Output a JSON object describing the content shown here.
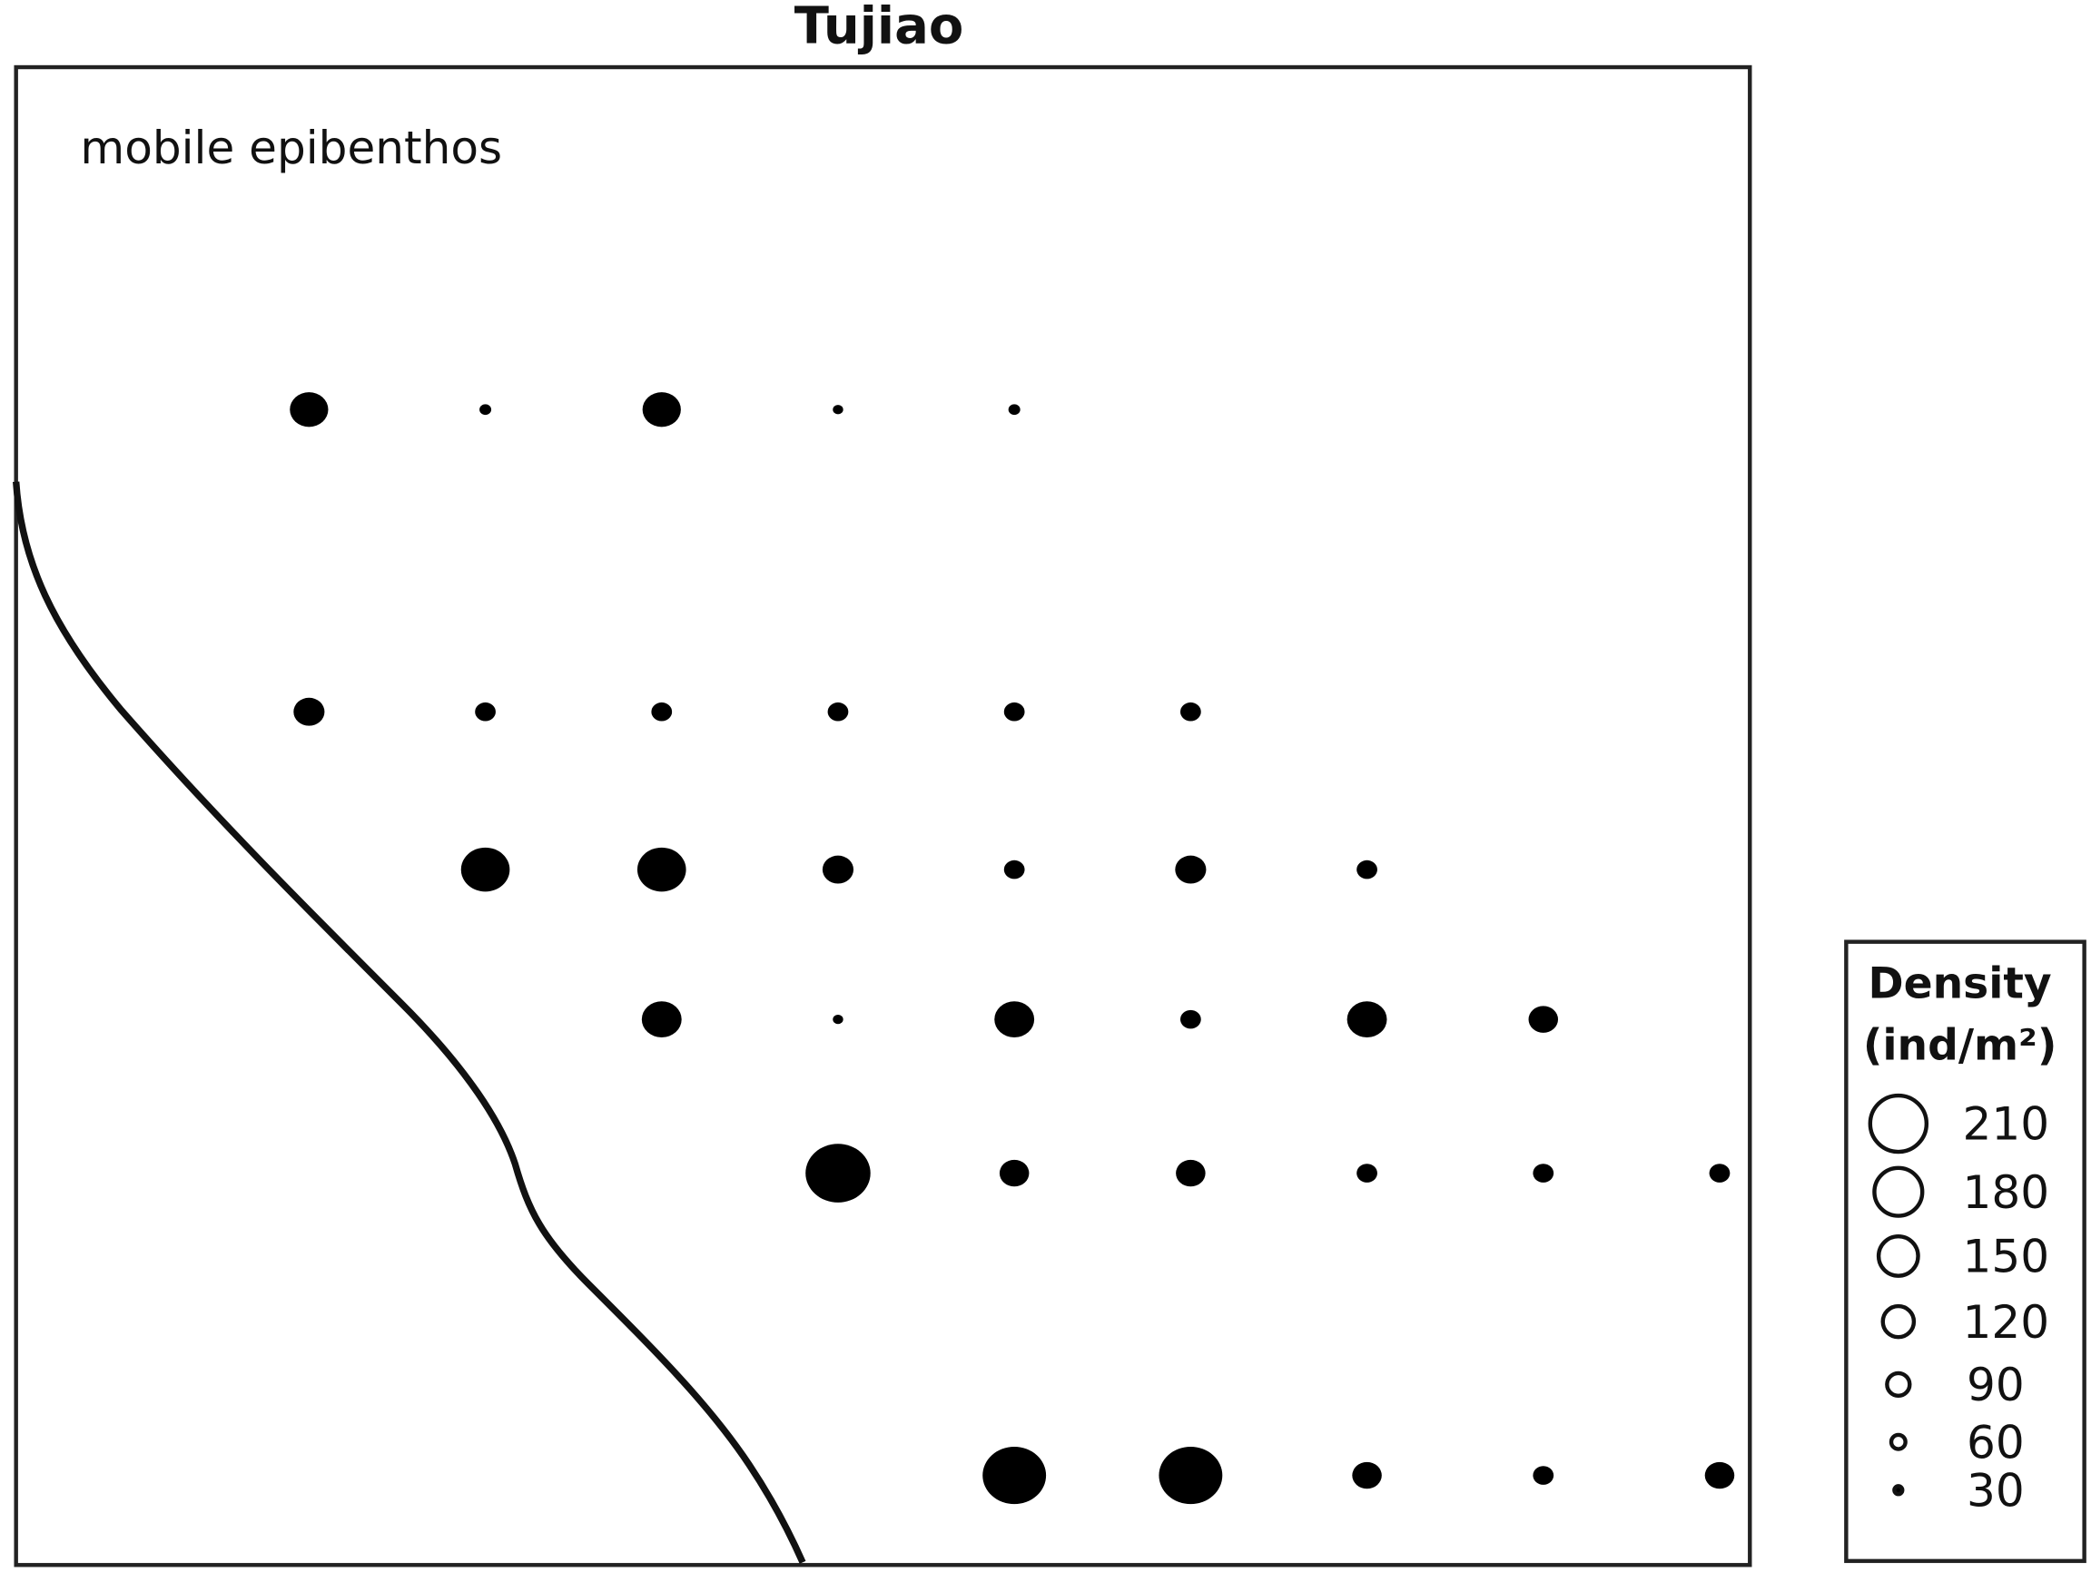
{
  "chart_data": {
    "type": "scatter",
    "title": "Tujiao",
    "panel_label": "mobile epibenthos",
    "size_legend": {
      "title_line1": "Density",
      "title_line2": "(ind/m²)",
      "values": [
        "210",
        "180",
        "150",
        "120",
        "90",
        "60",
        "30"
      ]
    },
    "marker_color": "#000000",
    "note": "",
    "points": [
      {
        "col": 0,
        "row": 0,
        "value": 130
      },
      {
        "col": 1,
        "row": 0,
        "value": 40
      },
      {
        "col": 2,
        "row": 0,
        "value": 130
      },
      {
        "col": 3,
        "row": 0,
        "value": 35
      },
      {
        "col": 4,
        "row": 0,
        "value": 40
      },
      {
        "col": 0,
        "row": 1,
        "value": 105
      },
      {
        "col": 1,
        "row": 1,
        "value": 70
      },
      {
        "col": 2,
        "row": 1,
        "value": 70
      },
      {
        "col": 3,
        "row": 1,
        "value": 70
      },
      {
        "col": 4,
        "row": 1,
        "value": 70
      },
      {
        "col": 5,
        "row": 1,
        "value": 70
      },
      {
        "col": 1,
        "row": 2,
        "value": 165
      },
      {
        "col": 2,
        "row": 2,
        "value": 165
      },
      {
        "col": 3,
        "row": 2,
        "value": 105
      },
      {
        "col": 4,
        "row": 2,
        "value": 70
      },
      {
        "col": 5,
        "row": 2,
        "value": 105
      },
      {
        "col": 6,
        "row": 2,
        "value": 70
      },
      {
        "col": 2,
        "row": 3,
        "value": 135
      },
      {
        "col": 3,
        "row": 3,
        "value": 35
      },
      {
        "col": 4,
        "row": 3,
        "value": 135
      },
      {
        "col": 5,
        "row": 3,
        "value": 70
      },
      {
        "col": 6,
        "row": 3,
        "value": 135
      },
      {
        "col": 7,
        "row": 3,
        "value": 100
      },
      {
        "col": 3,
        "row": 4,
        "value": 220
      },
      {
        "col": 4,
        "row": 4,
        "value": 100
      },
      {
        "col": 5,
        "row": 4,
        "value": 100
      },
      {
        "col": 6,
        "row": 4,
        "value": 70
      },
      {
        "col": 7,
        "row": 4,
        "value": 70
      },
      {
        "col": 8,
        "row": 4,
        "value": 70
      },
      {
        "col": 4,
        "row": 5,
        "value": 215
      },
      {
        "col": 5,
        "row": 5,
        "value": 215
      },
      {
        "col": 6,
        "row": 5,
        "value": 100
      },
      {
        "col": 7,
        "row": 5,
        "value": 70
      },
      {
        "col": 8,
        "row": 5,
        "value": 100
      }
    ]
  }
}
